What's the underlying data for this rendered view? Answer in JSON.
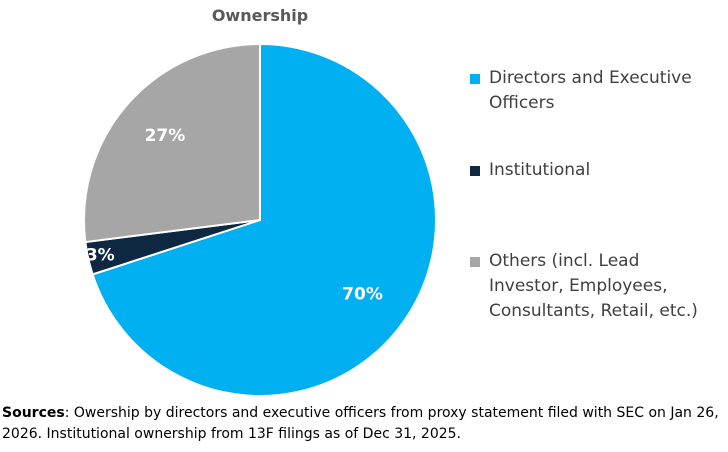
{
  "chart_data": {
    "type": "pie",
    "title": "Ownership",
    "slices": [
      {
        "name": "Directors and Executive Officers",
        "value": 70,
        "label": "70%",
        "color": "#00B0F0",
        "label_color": "#ffffff"
      },
      {
        "name": "Institutional",
        "value": 3,
        "label": "3%",
        "color": "#0E2841",
        "label_color": "#ffffff"
      },
      {
        "name": "Others (incl. Lead Investor, Employees, Consultants, Retail, etc.)",
        "value": 27,
        "label": "27%",
        "color": "#A6A6A6",
        "label_color": "#ffffff"
      }
    ],
    "legend_position": "right",
    "start_angle_deg": 0,
    "direction": "clockwise"
  },
  "footnote": {
    "label": "Sources",
    "text": ": Owership by directors and executive officers from proxy statement filed with SEC on Jan 26, 2026. Institutional ownership from 13F filings as of Dec 31, 2025."
  }
}
